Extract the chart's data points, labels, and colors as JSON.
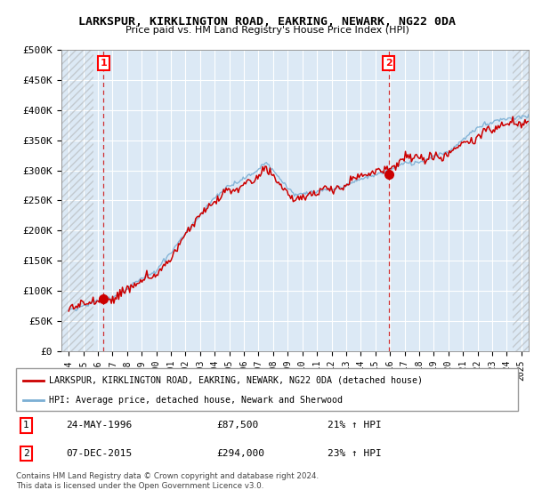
{
  "title1": "LARKSPUR, KIRKLINGTON ROAD, EAKRING, NEWARK, NG22 0DA",
  "title2": "Price paid vs. HM Land Registry's House Price Index (HPI)",
  "ylabel_values": [
    "£0",
    "£50K",
    "£100K",
    "£150K",
    "£200K",
    "£250K",
    "£300K",
    "£350K",
    "£400K",
    "£450K",
    "£500K"
  ],
  "ylim": [
    0,
    500000
  ],
  "xlim_start": 1993.5,
  "xlim_end": 2025.5,
  "sale1_x": 1996.39,
  "sale1_y": 87500,
  "sale1_label": "1",
  "sale1_date": "24-MAY-1996",
  "sale1_price": "£87,500",
  "sale1_hpi": "21% ↑ HPI",
  "sale2_x": 2015.92,
  "sale2_y": 294000,
  "sale2_label": "2",
  "sale2_date": "07-DEC-2015",
  "sale2_price": "£294,000",
  "sale2_hpi": "23% ↑ HPI",
  "hpi_line_color": "#7bafd4",
  "sale_line_color": "#cc0000",
  "vline_color": "#cc0000",
  "chart_bg_color": "#dce9f5",
  "background_color": "#ffffff",
  "legend_label1": "LARKSPUR, KIRKLINGTON ROAD, EAKRING, NEWARK, NG22 0DA (detached house)",
  "legend_label2": "HPI: Average price, detached house, Newark and Sherwood",
  "footer1": "Contains HM Land Registry data © Crown copyright and database right 2024.",
  "footer2": "This data is licensed under the Open Government Licence v3.0.",
  "hatch_left_end": 1995.7,
  "hatch_right_start": 2024.4
}
